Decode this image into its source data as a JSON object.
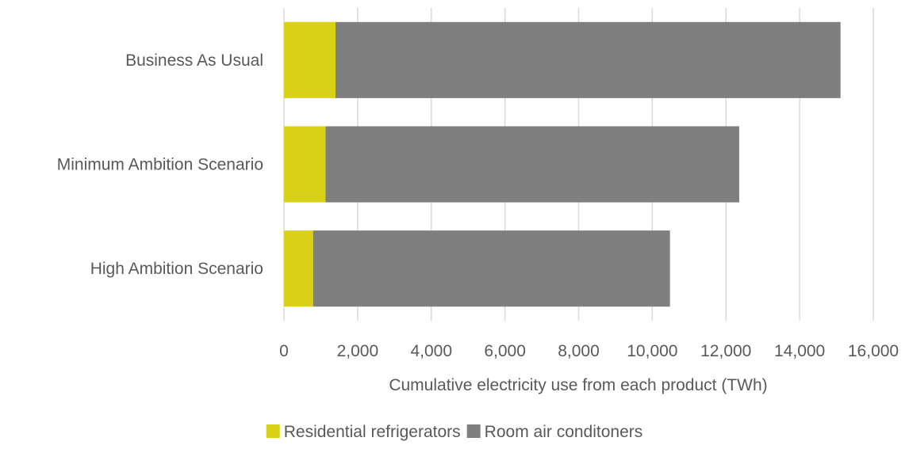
{
  "chart_data": {
    "type": "bar",
    "orientation": "horizontal",
    "stacked": true,
    "categories": [
      "Business As Usual",
      "Minimum Ambition Scenario",
      "High Ambition Scenario"
    ],
    "series": [
      {
        "name": "Residential refrigerators",
        "color": "#d9d116",
        "values": [
          1400,
          1130,
          790
        ]
      },
      {
        "name": "Room air conditoners",
        "color": "#7f7f7f",
        "values": [
          13710,
          11230,
          9690
        ]
      }
    ],
    "xlabel": "Cumulative electricity use from each product (TWh)",
    "ylabel": "",
    "xlim": [
      0,
      16000
    ],
    "xticks": [
      0,
      2000,
      4000,
      6000,
      8000,
      10000,
      12000,
      14000,
      16000
    ],
    "xtick_labels": [
      "0",
      "2,000",
      "4,000",
      "6,000",
      "8,000",
      "10,000",
      "12,000",
      "14,000",
      "16,000"
    ],
    "grid": true,
    "legend_position": "bottom"
  }
}
